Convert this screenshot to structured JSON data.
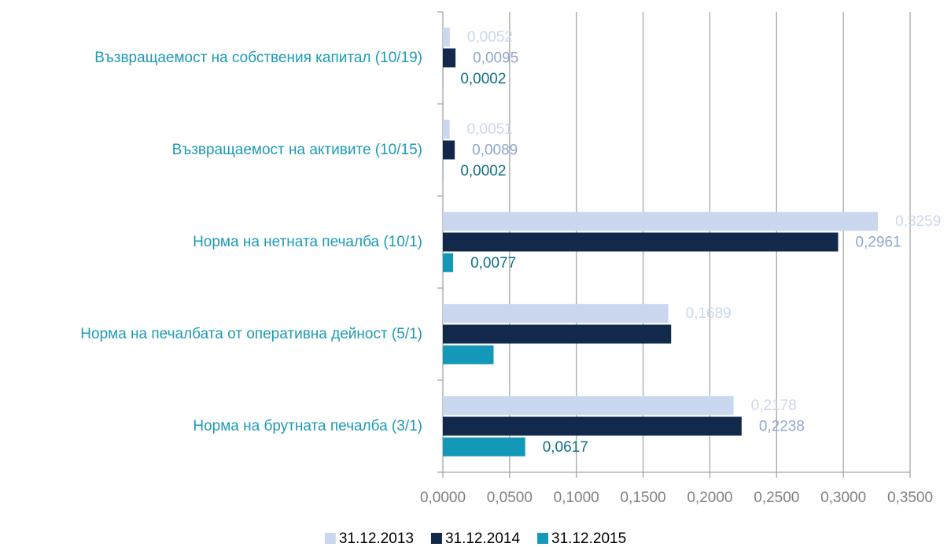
{
  "chart_data": {
    "type": "hbar",
    "categories": [
      "Възвращаемост на собствения капитал (10/19)",
      "Възвращаемост на активите (10/15)",
      "Норма на нетната печалба (10/1)",
      "Норма на печалбата от оперативна дейност (5/1)",
      "Норма на брутната печалба (3/1)"
    ],
    "series": [
      {
        "name": "31.12.2013",
        "color": "#c9d8ef",
        "label_color": "#c9d8ef",
        "values": [
          0.0052,
          0.0051,
          0.3259,
          0.1689,
          0.2178
        ],
        "value_labels": [
          "0,0052",
          "0,0051",
          "0,3259",
          "0,1689",
          "0,2178"
        ]
      },
      {
        "name": "31.12.2014",
        "color": "#13294b",
        "label_color": "#8fa8cc",
        "values": [
          0.0095,
          0.0089,
          0.2961,
          0.171,
          0.2238
        ],
        "value_labels": [
          "0,0095",
          "0,0089",
          "0,2961",
          null,
          "0,2238"
        ]
      },
      {
        "name": "31.12.2015",
        "color": "#1399b7",
        "label_color": "#0f6f88",
        "values": [
          0.0002,
          0.0002,
          0.0077,
          0.038,
          0.0617
        ],
        "value_labels": [
          "0,0002",
          "0,0002",
          "0,0077",
          null,
          "0,0617"
        ]
      }
    ],
    "xlim": [
      0,
      0.35
    ],
    "xticks": [
      {
        "value": 0,
        "label": "0,0000"
      },
      {
        "value": 0.05,
        "label": "0,0500"
      },
      {
        "value": 0.1,
        "label": "0,1000"
      },
      {
        "value": 0.15,
        "label": "0,1500"
      },
      {
        "value": 0.2,
        "label": "0,2000"
      },
      {
        "value": 0.25,
        "label": "0,2500"
      },
      {
        "value": 0.3,
        "label": "0,3000"
      },
      {
        "value": 0.35,
        "label": "0,3500"
      }
    ],
    "grid": true
  }
}
